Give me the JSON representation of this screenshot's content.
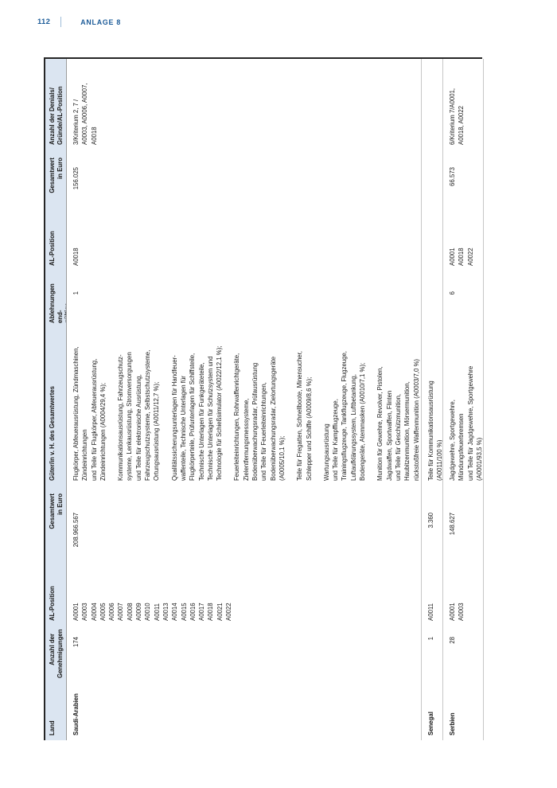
{
  "page": {
    "number": "112",
    "section": "ANLAGE 8"
  },
  "table": {
    "headers": [
      [
        "Land"
      ],
      [
        "Anzahl der",
        "Genehmigungen"
      ],
      [
        "AL-Position"
      ],
      [
        "Gesamtwert",
        "in Euro"
      ],
      [
        "Güter/in v. H. des Gesamtwertes"
      ],
      [
        "Ablehnungen end-",
        "gültige Ausfuhren"
      ],
      [
        "AL-Position"
      ],
      [
        "Gesamtwert",
        "in Euro"
      ],
      [
        "Anzahl der Denials/",
        "Gründe/AL-Position"
      ]
    ],
    "rows": [
      {
        "land": "Saudi-Arabien",
        "genehmigungen": "174",
        "al_positionen": [
          "A0001",
          "A0003",
          "A0004",
          "A0005",
          "A0006",
          "A0007",
          "A0008",
          "A0009",
          "A0010",
          "A0011",
          "A0013",
          "A0014",
          "A0015",
          "A0016",
          "A0017",
          "A0018",
          "A0021",
          "A0022"
        ],
        "gesamtwert": "208.966.567",
        "gueter": [
          [
            "Flugkörper, Abfeuerausrüstung, Zündmaschinen,",
            "Zündeinrichtungen",
            "und Teile für Flugkörper, Abfeuerausrüstung,",
            "Zündeinrichtungen (A0004/29,4 %);"
          ],
          [
            "Kommunikationsausrüstung, Fahrzeugschutz-",
            "systeme, Lenkausrüstung, Stromversorgungen",
            "und Teile für elektronische Ausrüstung,",
            "Fahrzeugschutzsysteme, Selbstschutzsysteme,",
            "Ortungsausrüstung (A0011/12,7 %);"
          ],
          [
            "Qualitätssicherungsunterlagen für Handfeuer-",
            "waffenteile, Technische Unterlagen für",
            "Flugkörperteile, Prüfunterlagen für Schiffsteile,",
            "Technische Unterlagen für Funkgeräteteile,",
            "Technische Unterlagen für Schutzsystem und",
            "Technologie für Schießsimulator (A0022/12,1 %);"
          ],
          [
            "Feuerleiteinrichtungen, Rohrwaffenrichtgeräte,",
            "Zielentfernungsmesssysteme,",
            "Bodenüberwachungsradar, Prüfausrüstung",
            "und Teile für Feuerleiteinrichtungen,",
            "Bodenüberwachungsradar, Zielortungsgeräte",
            "(A0005/10,1 %);"
          ],
          [
            "Teile für Fregatten, Schnellboote, Minensucher,",
            "Schlepper und Schiffe (A0009/8,6 %);"
          ],
          [
            "Wartungsausrüstung",
            "und Teile für Kampfflugzeuge,",
            "Trainingsflugzeuge, Tankflugzeuge, Flugzeuge,",
            "Luftaufklärungssystem, Luftbetankung,",
            "Bodengeräte, Atemmasken (A0010/7,1 %);"
          ],
          [
            "Munition für Gewehre, Revolver, Pistolen,",
            "Jagdwaffen, Sportwaffen, Flinten",
            "und Teile für Geschützmunition,",
            "Haubitzenmunition, Mörsermunition,",
            "rückstoßfreie Waffenmunition (A0003/7,0 %)"
          ]
        ],
        "ablehnungen": "1",
        "al_positionen_abl": [
          "A0018"
        ],
        "gesamtwert_abl": "156.025",
        "denials": [
          "3/Kriterium 2, 7 /",
          "A0003, A0006, A0007,",
          "A0018"
        ]
      },
      {
        "land": "Senegal",
        "genehmigungen": "1",
        "al_positionen": [
          "A0011"
        ],
        "gesamtwert": "3.360",
        "gueter": [
          [
            "Teile für Kommunikationsausrüstung",
            "(A0011/100 %)"
          ]
        ],
        "ablehnungen": "",
        "al_positionen_abl": [],
        "gesamtwert_abl": "",
        "denials": []
      },
      {
        "land": "Serbien",
        "genehmigungen": "28",
        "al_positionen": [
          "A0001",
          "A0003"
        ],
        "gesamtwert": "148.627",
        "gueter": [
          [
            "Jagdgewehre, Sportgewehre,",
            "Mündungsfeuerbremsen",
            "und Teile für Jagdgewehre, Sportgewehre",
            "(A0001/93,5 %)"
          ]
        ],
        "ablehnungen": "6",
        "al_positionen_abl": [
          "A0001",
          "A0018",
          "A0022"
        ],
        "gesamtwert_abl": "66.573",
        "denials": [
          "6/Kriterium 7/A0001,",
          "A0018, A0022"
        ]
      }
    ]
  }
}
